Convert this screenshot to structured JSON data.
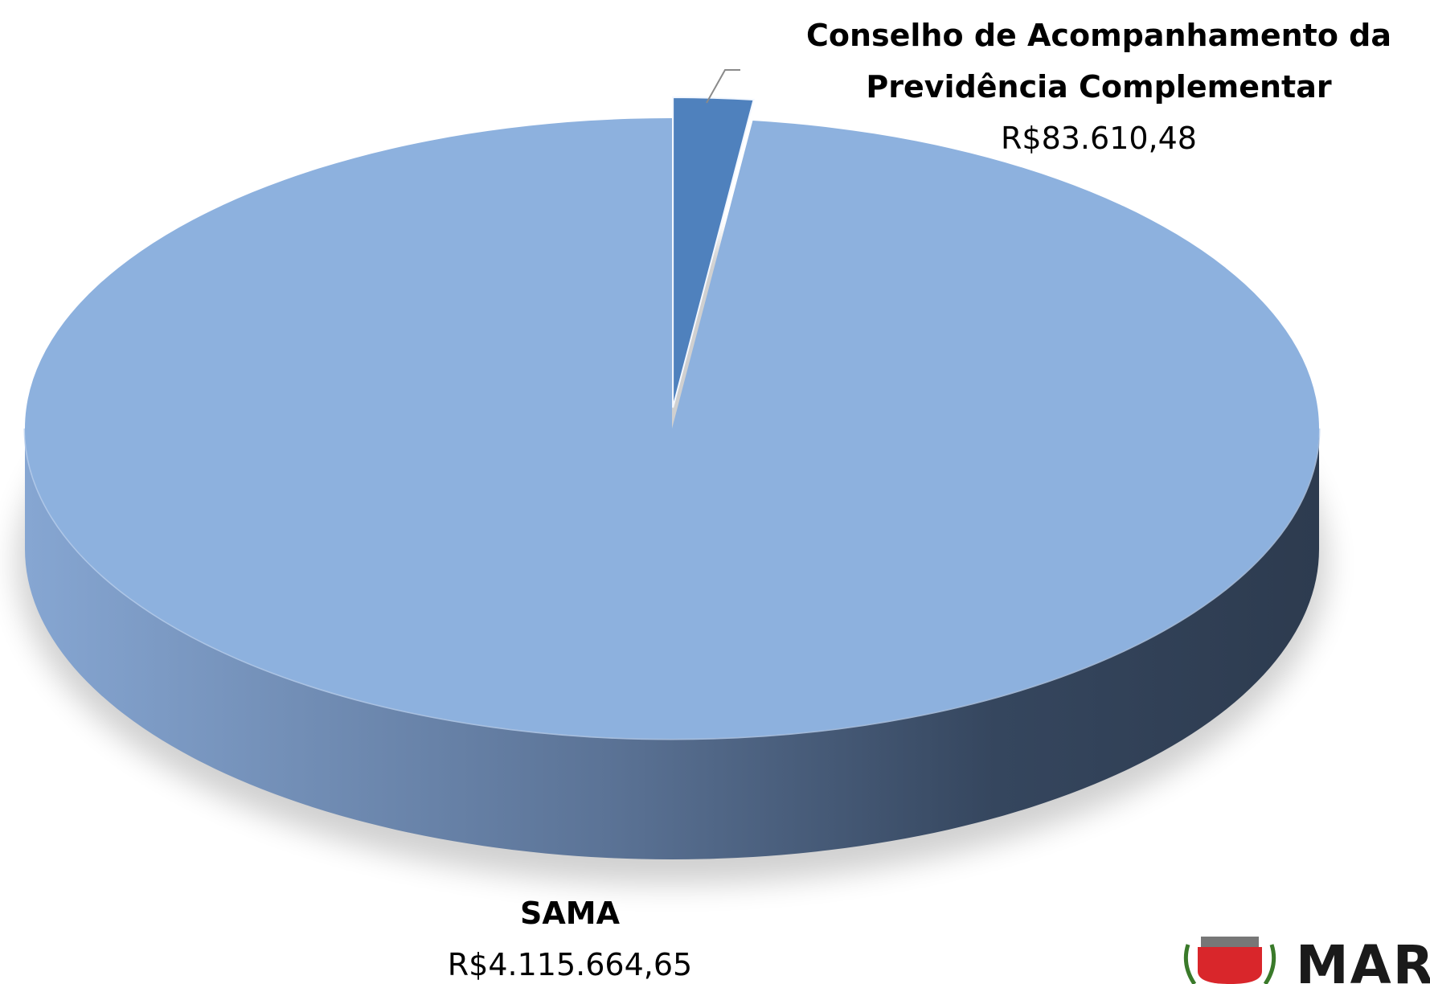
{
  "chart_data": {
    "type": "pie",
    "categories": [
      "Conselho de Acompanhamento da Previdência Complementar",
      "SAMA"
    ],
    "values": [
      83610.48,
      4115664.65
    ],
    "value_labels": [
      "R$83.610,48",
      "R$4.115.664,65"
    ],
    "colors": [
      "#4f81bd",
      "#8db1de"
    ]
  },
  "logo": {
    "text": "MARI"
  }
}
